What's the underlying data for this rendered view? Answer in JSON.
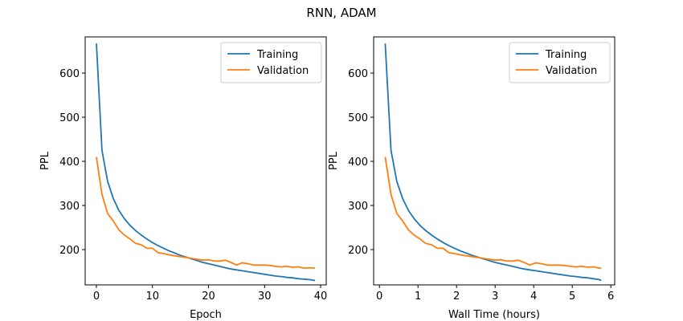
{
  "figure": {
    "title": "RNN, ADAM"
  },
  "chart_data": [
    {
      "type": "line",
      "xlabel": "Epoch",
      "ylabel": "PPL",
      "xlim": [
        -2,
        41
      ],
      "ylim": [
        120,
        682
      ],
      "xticks": [
        0,
        10,
        20,
        30,
        40
      ],
      "yticks": [
        200,
        300,
        400,
        500,
        600
      ],
      "grid": false,
      "legend": "top-right",
      "series": [
        {
          "name": "Training",
          "color": "#1f77b4",
          "x": [
            0,
            1,
            2,
            3,
            4,
            5,
            6,
            7,
            8,
            9,
            10,
            11,
            12,
            13,
            14,
            15,
            16,
            17,
            18,
            19,
            20,
            21,
            22,
            23,
            24,
            25,
            26,
            27,
            28,
            29,
            30,
            31,
            32,
            33,
            34,
            35,
            36,
            37,
            38,
            39
          ],
          "y": [
            667,
            425,
            355,
            316,
            289,
            270,
            255,
            243,
            233,
            224,
            216,
            209,
            203,
            197,
            192,
            187,
            183,
            179,
            175,
            171,
            168,
            165,
            162,
            159,
            156,
            154,
            152,
            150,
            148,
            146,
            144,
            142,
            140,
            139,
            137,
            136,
            134,
            133,
            132,
            130
          ]
        },
        {
          "name": "Validation",
          "color": "#ff7f0e",
          "x": [
            0,
            1,
            2,
            3,
            4,
            5,
            6,
            7,
            8,
            9,
            10,
            11,
            12,
            13,
            14,
            15,
            16,
            17,
            18,
            19,
            20,
            21,
            22,
            23,
            24,
            25,
            26,
            27,
            28,
            29,
            30,
            31,
            32,
            33,
            34,
            35,
            36,
            37,
            38,
            39
          ],
          "y": [
            410,
            325,
            282,
            265,
            245,
            233,
            224,
            214,
            211,
            203,
            203,
            193,
            191,
            188,
            186,
            184,
            182,
            180,
            178,
            176,
            177,
            174,
            174,
            176,
            171,
            165,
            170,
            168,
            165,
            165,
            165,
            164,
            162,
            161,
            162,
            160,
            161,
            158,
            159,
            158
          ]
        }
      ]
    },
    {
      "type": "line",
      "xlabel": "Wall Time (hours)",
      "ylabel": "PPL",
      "xlim": [
        -0.15,
        6.1
      ],
      "ylim": [
        120,
        682
      ],
      "xticks": [
        0,
        1,
        2,
        3,
        4,
        5,
        6
      ],
      "yticks": [
        200,
        300,
        400,
        500,
        600
      ],
      "grid": false,
      "legend": "top-right",
      "series": [
        {
          "name": "Training",
          "color": "#1f77b4",
          "x": [
            0.15,
            0.3,
            0.45,
            0.6,
            0.75,
            0.9,
            1.05,
            1.2,
            1.35,
            1.5,
            1.65,
            1.8,
            1.95,
            2.1,
            2.25,
            2.4,
            2.55,
            2.7,
            2.85,
            3.0,
            3.15,
            3.3,
            3.45,
            3.6,
            3.75,
            3.9,
            4.05,
            4.2,
            4.35,
            4.5,
            4.65,
            4.8,
            4.95,
            5.1,
            5.25,
            5.4,
            5.55,
            5.7,
            5.75
          ],
          "y": [
            667,
            425,
            355,
            316,
            289,
            270,
            255,
            243,
            233,
            224,
            216,
            209,
            203,
            197,
            192,
            187,
            183,
            179,
            175,
            171,
            168,
            165,
            162,
            159,
            156,
            154,
            152,
            150,
            148,
            146,
            144,
            142,
            140,
            139,
            137,
            136,
            134,
            132,
            130
          ]
        },
        {
          "name": "Validation",
          "color": "#ff7f0e",
          "x": [
            0.15,
            0.3,
            0.45,
            0.6,
            0.75,
            0.9,
            1.05,
            1.2,
            1.35,
            1.5,
            1.65,
            1.8,
            1.95,
            2.1,
            2.25,
            2.4,
            2.55,
            2.7,
            2.85,
            3.0,
            3.15,
            3.3,
            3.45,
            3.6,
            3.75,
            3.9,
            4.05,
            4.2,
            4.35,
            4.5,
            4.65,
            4.8,
            4.95,
            5.1,
            5.25,
            5.4,
            5.55,
            5.7,
            5.75
          ],
          "y": [
            410,
            325,
            282,
            265,
            245,
            233,
            224,
            214,
            211,
            203,
            203,
            193,
            191,
            188,
            186,
            184,
            182,
            180,
            178,
            176,
            177,
            174,
            174,
            176,
            171,
            165,
            170,
            168,
            165,
            165,
            165,
            164,
            162,
            161,
            162,
            160,
            161,
            158,
            158
          ]
        }
      ]
    }
  ]
}
